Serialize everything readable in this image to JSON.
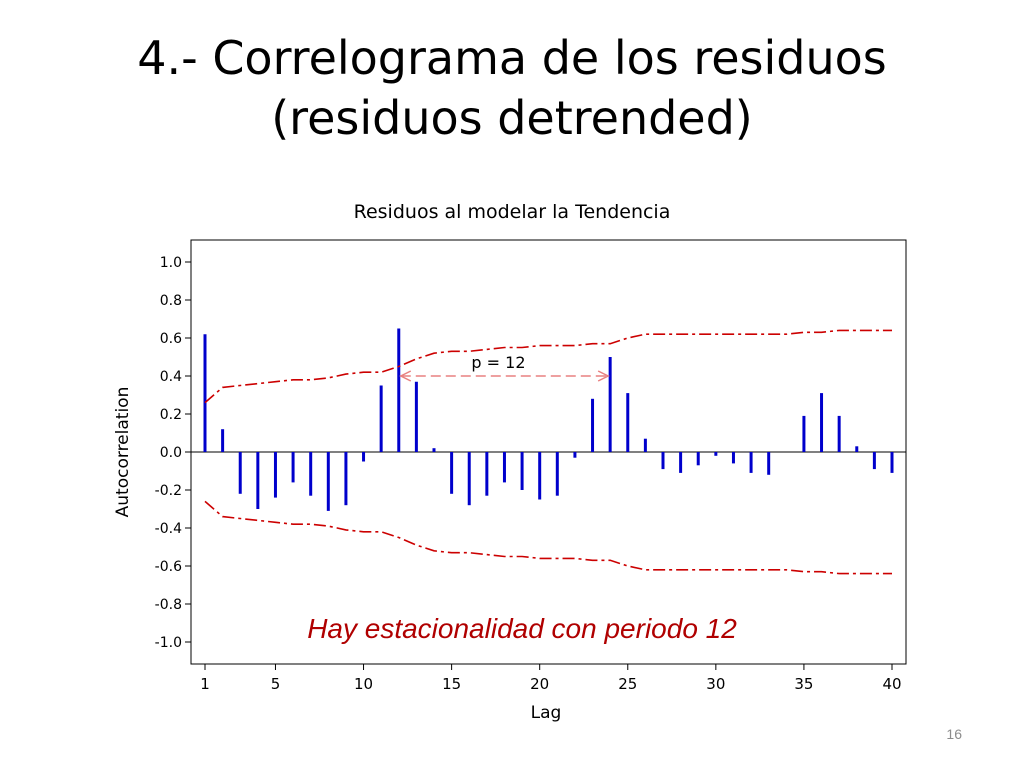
{
  "slide": {
    "title_line1": "4.- Correlograma de los residuos",
    "title_line2": "(residuos detrended)",
    "page_number": "16"
  },
  "chart_data": {
    "type": "bar",
    "title": "Residuos al modelar la Tendencia",
    "xlabel": "Lag",
    "ylabel": "Autocorrelation",
    "xlim": [
      1,
      40
    ],
    "ylim": [
      -1.0,
      1.0
    ],
    "x_ticks": [
      1,
      5,
      10,
      15,
      20,
      25,
      30,
      35,
      40
    ],
    "y_ticks": [
      "1.0",
      "0.8",
      "0.6",
      "0.4",
      "0.2",
      "0.0",
      "-0.2",
      "-0.4",
      "-0.6",
      "-0.8",
      "-1.0"
    ],
    "lags": [
      1,
      2,
      3,
      4,
      5,
      6,
      7,
      8,
      9,
      10,
      11,
      12,
      13,
      14,
      15,
      16,
      17,
      18,
      19,
      20,
      21,
      22,
      23,
      24,
      25,
      26,
      27,
      28,
      29,
      30,
      31,
      32,
      33,
      34,
      35,
      36,
      37,
      38,
      39,
      40
    ],
    "values": [
      0.62,
      0.12,
      -0.22,
      -0.3,
      -0.24,
      -0.16,
      -0.23,
      -0.31,
      -0.28,
      -0.05,
      0.35,
      0.65,
      0.37,
      0.02,
      -0.22,
      -0.28,
      -0.23,
      -0.16,
      -0.2,
      -0.25,
      -0.23,
      -0.03,
      0.28,
      0.5,
      0.31,
      0.07,
      -0.09,
      -0.11,
      -0.07,
      -0.02,
      -0.06,
      -0.11,
      -0.12,
      0.0,
      0.19,
      0.31,
      0.19,
      0.03,
      -0.09,
      -0.11
    ],
    "confidence_upper": [
      0.26,
      0.34,
      0.35,
      0.36,
      0.37,
      0.38,
      0.38,
      0.39,
      0.41,
      0.42,
      0.42,
      0.45,
      0.49,
      0.52,
      0.53,
      0.53,
      0.54,
      0.55,
      0.55,
      0.56,
      0.56,
      0.56,
      0.57,
      0.57,
      0.6,
      0.62,
      0.62,
      0.62,
      0.62,
      0.62,
      0.62,
      0.62,
      0.62,
      0.62,
      0.63,
      0.63,
      0.64,
      0.64,
      0.64,
      0.64
    ],
    "annotations": {
      "period_label": "p = 12",
      "period_from_lag": 12,
      "period_to_lag": 24,
      "period_arrow_y": 0.4,
      "note": "Hay estacionalidad con periodo 12"
    },
    "colors": {
      "bars": "#0000cc",
      "confidence": "#cc0000",
      "arrow": "#e88080",
      "note": "#b00000"
    },
    "grid": false
  }
}
